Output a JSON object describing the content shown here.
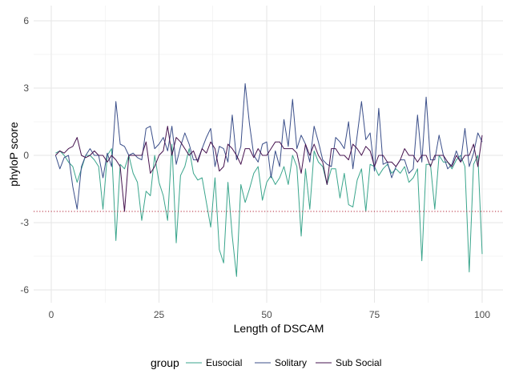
{
  "chart_data": {
    "type": "line",
    "title": "",
    "xlabel": "Length of DSCAM",
    "ylabel": "phyloP score",
    "xlim": [
      0,
      100
    ],
    "ylim": [
      -6.3,
      6.3
    ],
    "x_ticks": [
      0,
      25,
      50,
      75,
      100
    ],
    "y_ticks": [
      -6,
      -3,
      0,
      3,
      6
    ],
    "y_tick_labels": [
      "-6",
      "-3",
      "0",
      "3",
      "6"
    ],
    "grid": true,
    "legend": {
      "title": "group",
      "placement": "bottom"
    },
    "reference_line": {
      "y": -2.5,
      "style": "dotted",
      "color": "#b22234"
    },
    "x": [
      1,
      2,
      3,
      4,
      5,
      6,
      7,
      8,
      9,
      10,
      11,
      12,
      13,
      14,
      15,
      16,
      17,
      18,
      19,
      20,
      21,
      22,
      23,
      24,
      25,
      26,
      27,
      28,
      29,
      30,
      31,
      32,
      33,
      34,
      35,
      36,
      37,
      38,
      39,
      40,
      41,
      42,
      43,
      44,
      45,
      46,
      47,
      48,
      49,
      50,
      51,
      52,
      53,
      54,
      55,
      56,
      57,
      58,
      59,
      60,
      61,
      62,
      63,
      64,
      65,
      66,
      67,
      68,
      69,
      70,
      71,
      72,
      73,
      74,
      75,
      76,
      77,
      78,
      79,
      80,
      81,
      82,
      83,
      84,
      85,
      86,
      87,
      88,
      89,
      90,
      91,
      92,
      93,
      94,
      95,
      96,
      97,
      98,
      99,
      100
    ],
    "series": [
      {
        "name": "Eusocial",
        "color": "#3aa58c",
        "values": [
          0.1,
          0.2,
          0.0,
          -0.3,
          -0.5,
          -1.2,
          -0.6,
          0.0,
          0.0,
          -0.2,
          -0.5,
          -2.4,
          0.0,
          0.3,
          -3.8,
          -0.4,
          -0.6,
          0.0,
          -0.8,
          -1.2,
          -2.9,
          -1.6,
          -1.8,
          0.0,
          -1.2,
          -1.8,
          -2.9,
          0.5,
          -3.9,
          -0.9,
          -0.5,
          0.3,
          -0.8,
          -1.1,
          -1.0,
          -2.1,
          -3.2,
          -1.0,
          -4.2,
          -4.8,
          -1.2,
          -3.6,
          -5.4,
          -1.3,
          -2.1,
          -1.5,
          -0.8,
          -0.5,
          -2.0,
          -1.2,
          -0.9,
          -1.3,
          -1.0,
          -0.5,
          -1.3,
          0.0,
          -0.5,
          -3.6,
          -0.6,
          -2.4,
          0.2,
          -0.3,
          -0.5,
          -1.3,
          -0.6,
          -0.6,
          -1.9,
          -0.8,
          -2.2,
          -2.3,
          -1.1,
          -0.6,
          -2.5,
          -0.4,
          -0.5,
          -0.9,
          -0.6,
          -0.4,
          -0.8,
          -0.6,
          -0.8,
          -0.5,
          -1.2,
          -1.0,
          -0.6,
          -4.7,
          -0.4,
          -0.4,
          -2.4,
          0.0,
          -0.3,
          -0.3,
          -0.6,
          -0.2,
          0.0,
          -0.5,
          -5.2,
          -0.4,
          0.0,
          -4.4
        ]
      },
      {
        "name": "Solitary",
        "color": "#3b4f8a",
        "values": [
          0.0,
          -0.6,
          -0.1,
          0.0,
          -1.4,
          -2.4,
          -0.5,
          0.0,
          0.3,
          0.0,
          0.0,
          -1.0,
          0.1,
          -0.5,
          2.4,
          0.5,
          0.4,
          0.0,
          0.1,
          -0.1,
          -0.2,
          1.2,
          1.3,
          0.3,
          0.5,
          0.8,
          0.2,
          1.3,
          -0.4,
          0.4,
          1.0,
          0.5,
          -0.2,
          -0.2,
          0.3,
          0.8,
          1.2,
          -0.5,
          0.4,
          0.3,
          -0.3,
          1.8,
          -0.2,
          0.4,
          3.2,
          1.4,
          0.0,
          -0.3,
          0.5,
          0.6,
          -1.0,
          0.2,
          -0.5,
          1.6,
          0.4,
          2.5,
          0.3,
          0.9,
          0.5,
          -0.3,
          1.3,
          0.6,
          -0.2,
          -0.4,
          -0.5,
          0.8,
          0.6,
          0.3,
          1.5,
          -0.6,
          0.9,
          2.4,
          0.7,
          1.0,
          -0.7,
          2.1,
          -0.4,
          -0.3,
          -1.0,
          -0.5,
          -0.2,
          -0.2,
          -0.8,
          -0.6,
          1.8,
          -0.3,
          2.6,
          -0.2,
          -0.2,
          0.9,
          0.0,
          -0.6,
          -0.4,
          0.2,
          -0.3,
          1.2,
          -0.5,
          0.1,
          1.0,
          0.6
        ]
      },
      {
        "name": "Sub Social",
        "color": "#46134f",
        "values": [
          0.0,
          0.2,
          0.1,
          0.3,
          0.4,
          0.8,
          0.0,
          -0.1,
          0.0,
          0.2,
          0.0,
          0.0,
          -0.3,
          0.0,
          -0.2,
          -0.5,
          -2.5,
          0.0,
          0.0,
          0.0,
          0.0,
          0.6,
          -0.8,
          -0.5,
          0.0,
          0.2,
          1.3,
          0.0,
          0.8,
          0.6,
          0.3,
          0.0,
          0.2,
          -0.3,
          0.3,
          0.1,
          0.6,
          0.3,
          -0.7,
          -0.5,
          0.5,
          0.3,
          0.0,
          -0.4,
          0.3,
          0.3,
          -0.1,
          0.3,
          0.0,
          0.0,
          0.3,
          0.6,
          0.6,
          0.3,
          0.3,
          0.3,
          0.1,
          -0.8,
          0.5,
          0.0,
          0.5,
          0.0,
          -0.3,
          -1.3,
          0.3,
          0.3,
          0.0,
          0.0,
          -0.2,
          0.5,
          0.3,
          0.0,
          0.4,
          0.2,
          -0.5,
          0.0,
          0.0,
          -0.3,
          -0.3,
          -0.5,
          -0.2,
          0.3,
          0.0,
          0.0,
          -0.3,
          0.0,
          0.0,
          -0.5,
          0.0,
          0.0,
          0.0,
          -0.3,
          -0.5,
          0.0,
          -0.3,
          0.0,
          0.0,
          0.5,
          -0.5,
          0.9
        ]
      }
    ]
  }
}
